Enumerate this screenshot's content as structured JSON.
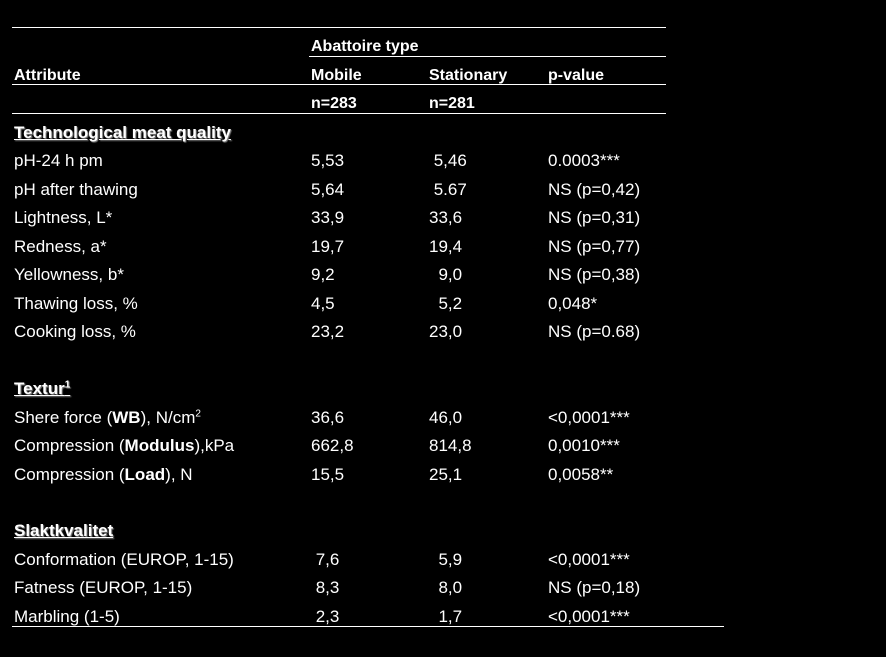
{
  "header": {
    "group_label": "Abattoire type",
    "attribute": "Attribute",
    "mobile": "Mobile",
    "stationary": "Stationary",
    "pvalue": "p-value",
    "n_mobile": "n=283",
    "n_stationary": "n=281"
  },
  "sections": [
    {
      "title": "Technological meat quality",
      "rows": [
        {
          "attr": "pH-24 h pm",
          "mobile": "5,53",
          "stationary": " 5,46",
          "p": "0.0003***"
        },
        {
          "attr": "pH after thawing",
          "mobile": "5,64",
          "stationary": " 5.67",
          "p": "NS (p=0,42)"
        },
        {
          "attr": "Lightness, L*",
          "mobile": "33,9",
          "stationary": "33,6",
          "p": "NS (p=0,31)"
        },
        {
          "attr": "Redness, a*",
          "mobile": "19,7",
          "stationary": "19,4",
          "p": "NS (p=0,77)"
        },
        {
          "attr": "Yellowness, b*",
          "mobile": "9,2",
          "stationary": "  9,0",
          "p": "NS (p=0,38)"
        },
        {
          "attr": "Thawing loss, %",
          "mobile": "4,5",
          "stationary": "  5,2",
          "p": "0,048*"
        },
        {
          "attr": "Cooking loss, %",
          "mobile": "23,2",
          "stationary": "23,0",
          "p": "NS (p=0.68)"
        }
      ]
    },
    {
      "title": "Textur",
      "title_sup": "1",
      "rows": [
        {
          "attr_pre": "Shere force (",
          "attr_bold": "WB",
          "attr_post": "), N/cm",
          "attr_sup": "2",
          "mobile": "36,6",
          "stationary": "46,0",
          "p": "<0,0001***"
        },
        {
          "attr_pre": "Compression (",
          "attr_bold": "Modulus",
          "attr_post": "),kPa",
          "mobile": "662,8",
          "stationary": "814,8",
          "p": "0,0010***"
        },
        {
          "attr_pre": "Compression (",
          "attr_bold": "Load",
          "attr_post": "), N",
          "mobile": "15,5",
          "stationary": "25,1",
          "p": "0,0058**"
        }
      ]
    },
    {
      "title": "Slaktkvalitet",
      "rows": [
        {
          "attr": "Conformation (EUROP, 1-15)",
          "mobile": " 7,6",
          "stationary": "  5,9",
          "p": "<0,0001***"
        },
        {
          "attr": "Fatness (EUROP, 1-15)",
          "mobile": " 8,3",
          "stationary": "  8,0",
          "p": "NS (p=0,18)"
        },
        {
          "attr": "Marbling (1-5)",
          "mobile": " 2,3",
          "stationary": "  1,7",
          "p": "<0,0001***"
        }
      ]
    }
  ]
}
